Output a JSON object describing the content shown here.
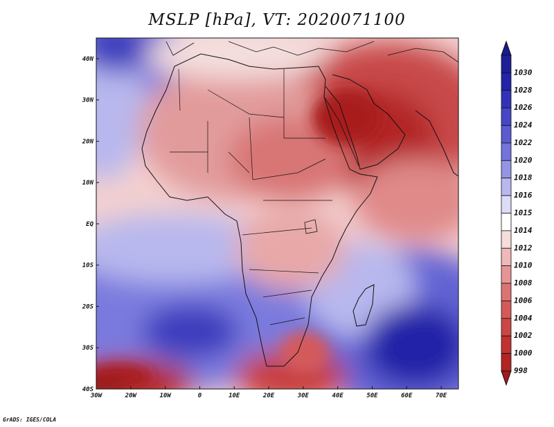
{
  "title": "MSLP [hPa], VT: 2020071100",
  "credit": "GrADS: IGES/COLA",
  "map": {
    "lon_range": [
      -30,
      75
    ],
    "lat_range": [
      -40,
      45
    ],
    "lat_ticks": [
      {
        "value": 40,
        "label": "40N"
      },
      {
        "value": 30,
        "label": "30N"
      },
      {
        "value": 20,
        "label": "20N"
      },
      {
        "value": 10,
        "label": "10N"
      },
      {
        "value": 0,
        "label": "EQ"
      },
      {
        "value": -10,
        "label": "10S"
      },
      {
        "value": -20,
        "label": "20S"
      },
      {
        "value": -30,
        "label": "30S"
      },
      {
        "value": -40,
        "label": "40S"
      }
    ],
    "lon_ticks": [
      {
        "value": -30,
        "label": "30W"
      },
      {
        "value": -20,
        "label": "20W"
      },
      {
        "value": -10,
        "label": "10W"
      },
      {
        "value": 0,
        "label": "0"
      },
      {
        "value": 10,
        "label": "10E"
      },
      {
        "value": 20,
        "label": "20E"
      },
      {
        "value": 30,
        "label": "30E"
      },
      {
        "value": 40,
        "label": "40E"
      },
      {
        "value": 50,
        "label": "50E"
      },
      {
        "value": 60,
        "label": "60E"
      },
      {
        "value": 70,
        "label": "70E"
      }
    ]
  },
  "colorbar": {
    "units": "hPa",
    "levels": [
      {
        "label": "1030",
        "color": "#1e1e96"
      },
      {
        "label": "1028",
        "color": "#2323a8"
      },
      {
        "label": "1026",
        "color": "#3232b9"
      },
      {
        "label": "1024",
        "color": "#4646c6"
      },
      {
        "label": "1022",
        "color": "#5a5ad1"
      },
      {
        "label": "1020",
        "color": "#7373db"
      },
      {
        "label": "1018",
        "color": "#9494e5"
      },
      {
        "label": "1016",
        "color": "#b8b8ee"
      },
      {
        "label": "1015",
        "color": "#dcdcf7"
      },
      {
        "label": "1014",
        "color": "#ffffff"
      },
      {
        "label": "1012",
        "color": "#f7dcdc"
      },
      {
        "label": "1010",
        "color": "#f0b8b8"
      },
      {
        "label": "1008",
        "color": "#e69494"
      },
      {
        "label": "1006",
        "color": "#dc7373"
      },
      {
        "label": "1004",
        "color": "#d45a5a"
      },
      {
        "label": "1002",
        "color": "#cc4646"
      },
      {
        "label": "1000",
        "color": "#c13232"
      },
      {
        "label": "998",
        "color": "#b22323"
      }
    ],
    "over_color": "#1a1a8a",
    "under_color": "#a31a1a"
  }
}
